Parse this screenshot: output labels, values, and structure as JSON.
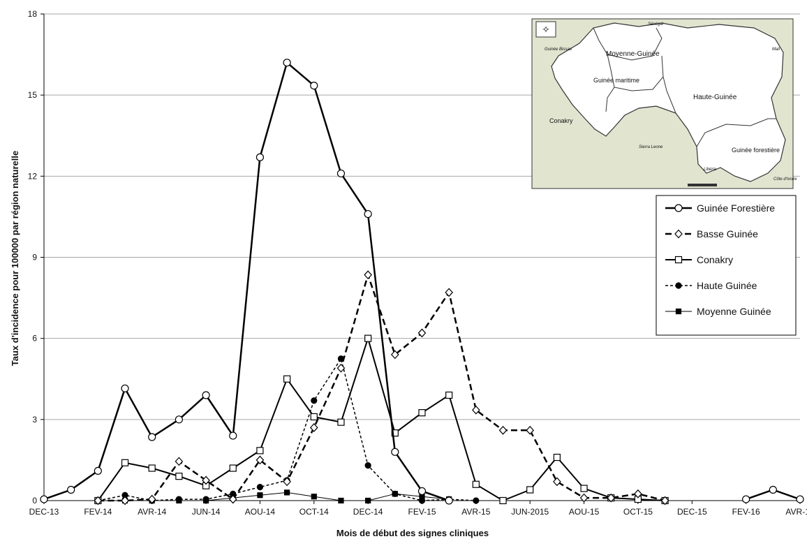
{
  "chart_data": {
    "type": "line",
    "title": "",
    "xlabel": "Mois de début des signes cliniques",
    "ylabel": "Taux d'incidence pour 100000 par région naturelle",
    "ylim": [
      0,
      18
    ],
    "yticks": [
      0,
      3,
      6,
      9,
      12,
      15,
      18
    ],
    "xrange": [
      0,
      28
    ],
    "xticks": [
      {
        "x": 0,
        "label": "DEC-13"
      },
      {
        "x": 2,
        "label": "FEV-14"
      },
      {
        "x": 4,
        "label": "AVR-14"
      },
      {
        "x": 6,
        "label": "JUN-14"
      },
      {
        "x": 8,
        "label": "AOU-14"
      },
      {
        "x": 10,
        "label": "OCT-14"
      },
      {
        "x": 12,
        "label": "DEC-14"
      },
      {
        "x": 14,
        "label": "FEV-15"
      },
      {
        "x": 16,
        "label": "AVR-15"
      },
      {
        "x": 18,
        "label": "JUN-2015"
      },
      {
        "x": 20,
        "label": "AOU-15"
      },
      {
        "x": 22,
        "label": "OCT-15"
      },
      {
        "x": 24,
        "label": "DEC-15"
      },
      {
        "x": 26,
        "label": "FEV-16"
      },
      {
        "x": 28,
        "label": "AVR-16"
      }
    ],
    "grid": "horizontal",
    "legend_position": "right",
    "series": [
      {
        "name": "Guinée Forestière",
        "marker": "circle-open",
        "dash": "solid",
        "width": 2.5,
        "segments": [
          [
            [
              0,
              0.05
            ],
            [
              1,
              0.4
            ],
            [
              2,
              1.1
            ],
            [
              3,
              4.15
            ],
            [
              4,
              2.35
            ],
            [
              5,
              3.0
            ],
            [
              6,
              3.9
            ],
            [
              7,
              2.4
            ],
            [
              8,
              12.7
            ],
            [
              9,
              16.2
            ],
            [
              10,
              15.35
            ],
            [
              11,
              12.1
            ],
            [
              12,
              10.6
            ],
            [
              13,
              1.8
            ],
            [
              14,
              0.35
            ],
            [
              15,
              0.0
            ]
          ],
          [
            [
              26,
              0.05
            ],
            [
              27,
              0.4
            ],
            [
              28,
              0.05
            ]
          ]
        ]
      },
      {
        "name": "Basse Guinée",
        "marker": "diamond-open",
        "dash": "long",
        "width": 2.5,
        "segments": [
          [
            [
              2,
              0.0
            ],
            [
              3,
              0.0
            ],
            [
              4,
              0.05
            ],
            [
              5,
              1.45
            ],
            [
              6,
              0.75
            ],
            [
              7,
              0.05
            ],
            [
              8,
              1.5
            ],
            [
              9,
              0.7
            ],
            [
              10,
              2.7
            ],
            [
              11,
              4.9
            ],
            [
              12,
              8.35
            ],
            [
              13,
              5.4
            ],
            [
              14,
              6.2
            ],
            [
              15,
              7.7
            ],
            [
              16,
              3.35
            ],
            [
              17,
              2.6
            ],
            [
              18,
              2.6
            ],
            [
              19,
              0.7
            ],
            [
              20,
              0.1
            ],
            [
              21,
              0.1
            ],
            [
              22,
              0.25
            ],
            [
              23,
              0.0
            ]
          ]
        ]
      },
      {
        "name": "Conakry",
        "marker": "square-open",
        "dash": "solid",
        "width": 2,
        "segments": [
          [
            [
              2,
              0.0
            ],
            [
              3,
              1.4
            ],
            [
              4,
              1.2
            ],
            [
              5,
              0.9
            ],
            [
              6,
              0.55
            ],
            [
              7,
              1.2
            ],
            [
              8,
              1.85
            ],
            [
              9,
              4.5
            ],
            [
              10,
              3.1
            ],
            [
              11,
              2.9
            ],
            [
              12,
              6.0
            ],
            [
              13,
              2.5
            ],
            [
              14,
              3.25
            ],
            [
              15,
              3.9
            ],
            [
              16,
              0.6
            ],
            [
              17,
              0.0
            ],
            [
              18,
              0.4
            ],
            [
              19,
              1.6
            ],
            [
              20,
              0.45
            ],
            [
              21,
              0.1
            ],
            [
              22,
              0.05
            ],
            [
              23,
              0.0
            ]
          ]
        ]
      },
      {
        "name": "Haute Guinée",
        "marker": "circle-filled",
        "dash": "short",
        "width": 1.5,
        "segments": [
          [
            [
              2,
              0.0
            ],
            [
              3,
              0.2
            ],
            [
              4,
              0.0
            ],
            [
              5,
              0.05
            ],
            [
              6,
              0.05
            ],
            [
              7,
              0.25
            ],
            [
              8,
              0.5
            ],
            [
              9,
              0.75
            ],
            [
              10,
              3.7
            ],
            [
              11,
              5.25
            ],
            [
              12,
              1.3
            ],
            [
              13,
              0.25
            ],
            [
              14,
              0.0
            ],
            [
              15,
              0.05
            ],
            [
              16,
              0.0
            ]
          ]
        ]
      },
      {
        "name": "Moyenne Guinée",
        "marker": "square-filled",
        "dash": "solid",
        "width": 1,
        "segments": [
          [
            [
              2,
              0.0
            ],
            [
              3,
              0.0
            ],
            [
              4,
              0.0
            ],
            [
              5,
              0.0
            ],
            [
              6,
              0.0
            ],
            [
              7,
              0.1
            ],
            [
              8,
              0.2
            ],
            [
              9,
              0.3
            ],
            [
              10,
              0.15
            ],
            [
              11,
              0.0
            ],
            [
              12,
              0.0
            ],
            [
              13,
              0.25
            ],
            [
              14,
              0.15
            ],
            [
              15,
              0.05
            ]
          ]
        ]
      }
    ]
  },
  "inset_map": {
    "region_labels": [
      "Moyenne-Guinée",
      "Guinée maritime",
      "Haute-Guinée",
      "Conakry",
      "Guinée forestière"
    ],
    "country_labels": [
      "Sénégal",
      "Guinée Bissau",
      "Mali",
      "Sierra Leone",
      "Libéria",
      "Côte d'Ivoire"
    ],
    "colors": {
      "land": "#ffffff",
      "neighbors": "#e1e5d0",
      "water": "#ffffff"
    }
  },
  "colors": {
    "line": "#000000",
    "grid": "#a6a6a6",
    "background": "#ffffff"
  }
}
